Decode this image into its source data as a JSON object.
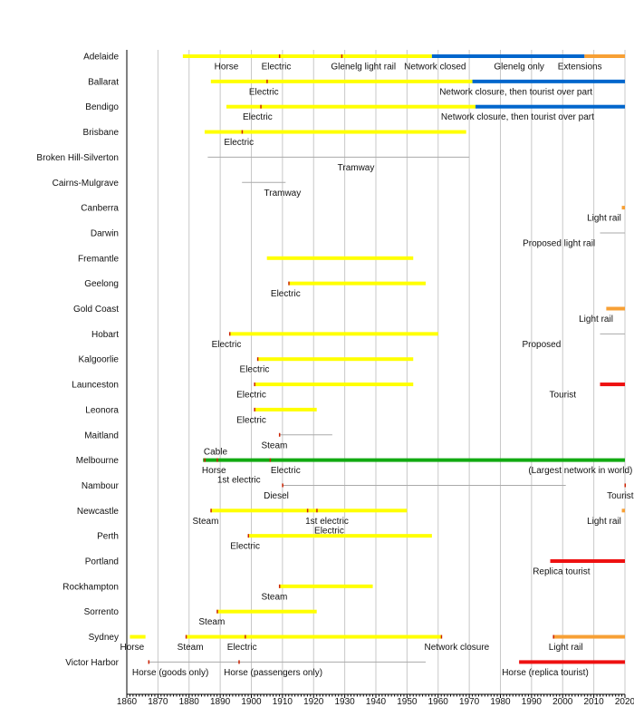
{
  "chart_data": {
    "type": "timeline",
    "xlim": [
      1860,
      2020
    ],
    "x_ticks": [
      1860,
      1870,
      1880,
      1890,
      1900,
      1910,
      1920,
      1930,
      1940,
      1950,
      1960,
      1970,
      1980,
      1990,
      2000,
      2010,
      2020
    ],
    "grid": "vertical per decade",
    "colors": {
      "yellow": "#ffff00",
      "blue": "#0066cc",
      "orange": "#f7a035",
      "red": "#ee1111",
      "green": "#11aa11",
      "line": "#aaaaaa",
      "mark": "#cc2200"
    },
    "rows": [
      {
        "name": "Adelaide",
        "bars": [
          [
            1878,
            1958,
            "yellow"
          ],
          [
            1958,
            2007,
            "blue"
          ],
          [
            2007,
            2020,
            "orange"
          ]
        ],
        "marks": [
          1909,
          1929
        ],
        "lines": [],
        "labels": [
          [
            "Horse",
            1892,
            "below"
          ],
          [
            "Electric",
            1908,
            "below"
          ],
          [
            "Glenelg light rail",
            1936,
            "below"
          ],
          [
            "Network closed",
            1959,
            "below"
          ],
          [
            "Glenelg only",
            1986,
            "below"
          ],
          [
            "Extensions",
            2005.5,
            "below"
          ]
        ]
      },
      {
        "name": "Ballarat",
        "bars": [
          [
            1887,
            1971,
            "yellow"
          ],
          [
            1971,
            2020,
            "blue"
          ]
        ],
        "marks": [
          1905
        ],
        "lines": [],
        "labels": [
          [
            "Electric",
            1904,
            "below"
          ],
          [
            "Network closure, then tourist over part",
            1985,
            "below"
          ]
        ]
      },
      {
        "name": "Bendigo",
        "bars": [
          [
            1892,
            1972,
            "yellow"
          ],
          [
            1972,
            2020,
            "blue"
          ]
        ],
        "marks": [
          1903
        ],
        "lines": [],
        "labels": [
          [
            "Electric",
            1902,
            "below"
          ],
          [
            "Network closure, then tourist over part",
            1985.5,
            "below"
          ]
        ]
      },
      {
        "name": "Brisbane",
        "bars": [
          [
            1885,
            1969,
            "yellow"
          ]
        ],
        "marks": [
          1897
        ],
        "lines": [],
        "labels": [
          [
            "Electric",
            1896,
            "below"
          ]
        ]
      },
      {
        "name": "Broken Hill-Silverton",
        "bars": [],
        "marks": [],
        "lines": [
          [
            1886,
            1970
          ]
        ],
        "labels": [
          [
            "Tramway",
            1933.6,
            "below"
          ]
        ]
      },
      {
        "name": "Cairns-Mulgrave",
        "bars": [],
        "marks": [],
        "lines": [
          [
            1897,
            1911
          ]
        ],
        "labels": [
          [
            "Tramway",
            1910,
            "below"
          ]
        ]
      },
      {
        "name": "Canberra",
        "bars": [
          [
            2019,
            2020,
            "orange"
          ]
        ],
        "marks": [],
        "lines": [],
        "labels": [
          [
            "Light rail",
            2013.3,
            "below"
          ]
        ]
      },
      {
        "name": "Darwin",
        "bars": [],
        "marks": [],
        "lines": [
          [
            2012,
            2020
          ]
        ],
        "labels": [
          [
            "Proposed light rail",
            1998.8,
            "below"
          ]
        ]
      },
      {
        "name": "Fremantle",
        "bars": [
          [
            1905,
            1952,
            "yellow"
          ]
        ],
        "marks": [],
        "lines": [],
        "labels": []
      },
      {
        "name": "Geelong",
        "bars": [
          [
            1912,
            1956,
            "yellow"
          ]
        ],
        "marks": [
          1912
        ],
        "lines": [],
        "labels": [
          [
            "Electric",
            1911,
            "below"
          ]
        ]
      },
      {
        "name": "Gold Coast",
        "bars": [
          [
            2014,
            2020,
            "orange"
          ]
        ],
        "marks": [],
        "lines": [],
        "labels": [
          [
            "Light rail",
            2010.7,
            "below"
          ]
        ]
      },
      {
        "name": "Hobart",
        "bars": [
          [
            1893,
            1960,
            "yellow"
          ]
        ],
        "marks": [
          1893
        ],
        "lines": [
          [
            2012,
            2020
          ]
        ],
        "labels": [
          [
            "Electric",
            1892,
            "below"
          ],
          [
            "Proposed",
            1993.2,
            "below"
          ]
        ]
      },
      {
        "name": "Kalgoorlie",
        "bars": [
          [
            1902,
            1952,
            "yellow"
          ]
        ],
        "marks": [
          1902
        ],
        "lines": [],
        "labels": [
          [
            "Electric",
            1901,
            "below"
          ]
        ]
      },
      {
        "name": "Launceston",
        "bars": [
          [
            1901,
            1952,
            "yellow"
          ],
          [
            2012,
            2020,
            "red"
          ]
        ],
        "marks": [
          1901
        ],
        "lines": [],
        "labels": [
          [
            "Electric",
            1900,
            "below"
          ],
          [
            "Tourist",
            2000,
            "below"
          ]
        ]
      },
      {
        "name": "Leonora",
        "bars": [
          [
            1901,
            1921,
            "yellow"
          ]
        ],
        "marks": [
          1901
        ],
        "lines": [],
        "labels": [
          [
            "Electric",
            1900,
            "below"
          ]
        ]
      },
      {
        "name": "Maitland",
        "bars": [],
        "marks": [
          1909
        ],
        "lines": [
          [
            1909,
            1926
          ]
        ],
        "labels": [
          [
            "Steam",
            1907.4,
            "below"
          ]
        ]
      },
      {
        "name": "Melbourne",
        "bars": [
          [
            1884.5,
            2020,
            "green"
          ]
        ],
        "marks": [
          1885,
          1889,
          1906
        ],
        "lines": [],
        "labels": [
          [
            "Cable",
            1888.5,
            "above"
          ],
          [
            "Horse",
            1888,
            "below"
          ],
          [
            "Electric",
            1911,
            "below"
          ],
          [
            "(Largest network in world)",
            2005.7,
            "below"
          ],
          [
            "1st electric",
            1896,
            "below-2"
          ]
        ]
      },
      {
        "name": "Nambour",
        "bars": [],
        "marks": [
          1910,
          2020
        ],
        "lines": [
          [
            1910,
            2001
          ]
        ],
        "labels": [
          [
            "Diesel",
            1908,
            "below"
          ],
          [
            "Tourist",
            2018.5,
            "below"
          ]
        ]
      },
      {
        "name": "Newcastle",
        "bars": [
          [
            1887,
            1950,
            "yellow"
          ],
          [
            2019,
            2020,
            "orange"
          ]
        ],
        "marks": [
          1887,
          1918,
          1921
        ],
        "lines": [],
        "labels": [
          [
            "Steam",
            1885.3,
            "below"
          ],
          [
            "1st electric",
            1924.3,
            "below"
          ],
          [
            "Light rail",
            2013.3,
            "below"
          ],
          [
            "Electric",
            1925,
            "below-2"
          ]
        ]
      },
      {
        "name": "Perth",
        "bars": [
          [
            1899,
            1958,
            "yellow"
          ]
        ],
        "marks": [
          1899
        ],
        "lines": [],
        "labels": [
          [
            "Electric",
            1898,
            "below"
          ]
        ]
      },
      {
        "name": "Portland",
        "bars": [
          [
            1996,
            2020,
            "red"
          ]
        ],
        "marks": [],
        "lines": [],
        "labels": [
          [
            "Replica tourist",
            1999.6,
            "below"
          ]
        ]
      },
      {
        "name": "Rockhampton",
        "bars": [
          [
            1909,
            1939,
            "yellow"
          ]
        ],
        "marks": [
          1909
        ],
        "lines": [],
        "labels": [
          [
            "Steam",
            1907.4,
            "below"
          ]
        ]
      },
      {
        "name": "Sorrento",
        "bars": [
          [
            1889,
            1921,
            "yellow"
          ]
        ],
        "marks": [
          1889
        ],
        "lines": [],
        "labels": [
          [
            "Steam",
            1887.3,
            "below"
          ]
        ]
      },
      {
        "name": "Sydney",
        "bars": [
          [
            1861,
            1866,
            "yellow"
          ],
          [
            1879,
            1961,
            "yellow"
          ],
          [
            1997,
            2020,
            "orange"
          ]
        ],
        "marks": [
          1879,
          1898,
          1961,
          1997
        ],
        "lines": [],
        "labels": [
          [
            "Horse",
            1861.7,
            "below"
          ],
          [
            "Steam",
            1880.4,
            "below"
          ],
          [
            "Electric",
            1897,
            "below"
          ],
          [
            "Network closure",
            1966,
            "below"
          ],
          [
            "Light rail",
            2001,
            "below"
          ]
        ]
      },
      {
        "name": "Victor Harbor",
        "bars": [
          [
            1986,
            2020,
            "red"
          ]
        ],
        "marks": [
          1867,
          1896
        ],
        "lines": [
          [
            1867,
            1956
          ]
        ],
        "labels": [
          [
            "Horse (goods only)",
            1874,
            "below"
          ],
          [
            "Horse (passengers only)",
            1907,
            "below"
          ],
          [
            "Horse (replica tourist)",
            1994.4,
            "below"
          ]
        ]
      }
    ]
  }
}
